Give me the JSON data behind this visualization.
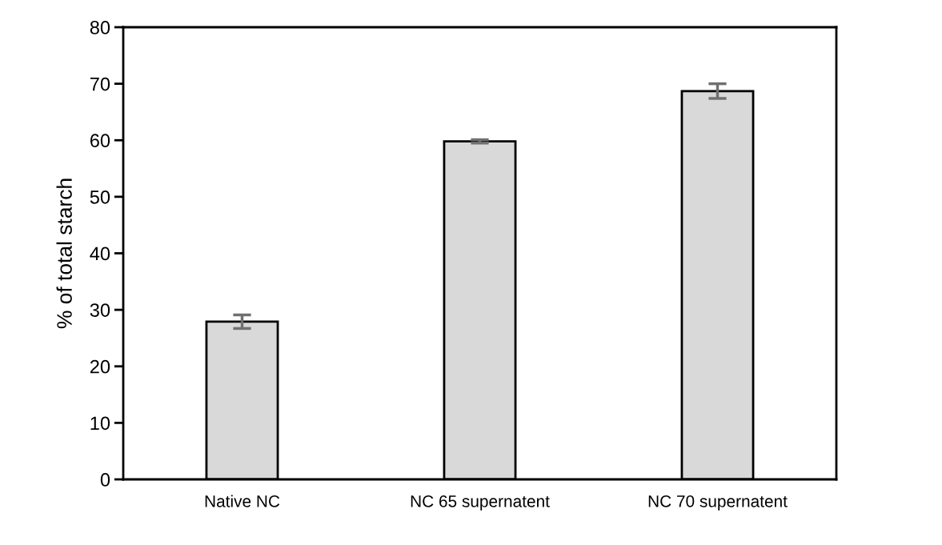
{
  "chart_data": {
    "type": "bar",
    "ylabel": "% of total starch",
    "categories": [
      "Native NC",
      "NC 65 supernatent",
      "NC 70 supernatent"
    ],
    "values": [
      27.9,
      59.8,
      68.7
    ],
    "errors": [
      1.2,
      0.3,
      1.3
    ],
    "color": "#d9d9d9",
    "ylim": [
      0,
      80
    ],
    "yticks": [
      0,
      10,
      20,
      30,
      40,
      50,
      60,
      70,
      80
    ],
    "grid": false,
    "legend": false
  }
}
